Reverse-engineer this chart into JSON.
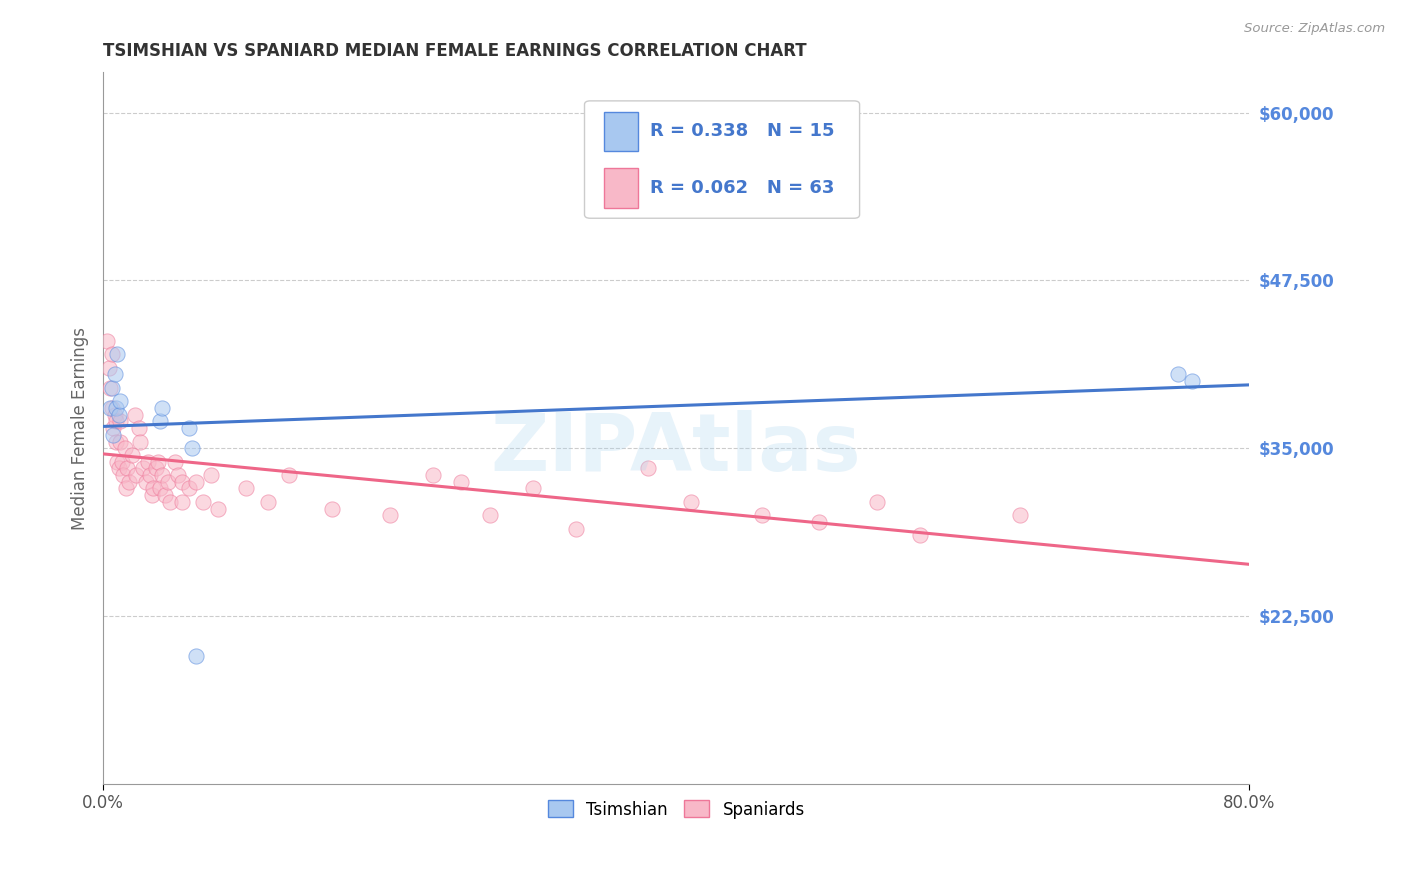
{
  "title": "TSIMSHIAN VS SPANIARD MEDIAN FEMALE EARNINGS CORRELATION CHART",
  "source": "Source: ZipAtlas.com",
  "ylabel": "Median Female Earnings",
  "xlim": [
    0.0,
    0.8
  ],
  "ylim": [
    10000,
    63000
  ],
  "yticks": [
    22500,
    35000,
    47500,
    60000
  ],
  "ytick_labels": [
    "$22,500",
    "$35,000",
    "$47,500",
    "$60,000"
  ],
  "background_color": "#ffffff",
  "grid_color": "#cccccc",
  "blue_fill": "#a8c8f0",
  "pink_fill": "#f8b8c8",
  "blue_edge": "#5588dd",
  "pink_edge": "#ee7799",
  "blue_line": "#4477cc",
  "pink_line": "#ee6688",
  "marker_size": 120,
  "marker_alpha": 0.55,
  "line_width": 2.2,
  "tsimshian_x": [
    0.005,
    0.006,
    0.007,
    0.008,
    0.009,
    0.01,
    0.011,
    0.012,
    0.04,
    0.041,
    0.06,
    0.062,
    0.065,
    0.75,
    0.76
  ],
  "tsimshian_y": [
    38000,
    39500,
    36000,
    40500,
    38000,
    42000,
    37500,
    38500,
    37000,
    38000,
    36500,
    35000,
    19500,
    40500,
    40000
  ],
  "spaniard_x": [
    0.003,
    0.004,
    0.005,
    0.006,
    0.006,
    0.007,
    0.008,
    0.009,
    0.009,
    0.01,
    0.011,
    0.012,
    0.012,
    0.013,
    0.014,
    0.015,
    0.016,
    0.017,
    0.018,
    0.02,
    0.022,
    0.023,
    0.025,
    0.026,
    0.028,
    0.03,
    0.031,
    0.033,
    0.034,
    0.035,
    0.037,
    0.038,
    0.04,
    0.041,
    0.043,
    0.045,
    0.047,
    0.05,
    0.052,
    0.055,
    0.055,
    0.06,
    0.065,
    0.07,
    0.075,
    0.08,
    0.1,
    0.115,
    0.13,
    0.16,
    0.2,
    0.23,
    0.25,
    0.27,
    0.3,
    0.33,
    0.38,
    0.41,
    0.46,
    0.5,
    0.54,
    0.57,
    0.64
  ],
  "spaniard_y": [
    43000,
    41000,
    39500,
    38000,
    42000,
    36500,
    37500,
    35500,
    37000,
    34000,
    33500,
    35500,
    37000,
    34000,
    33000,
    35000,
    32000,
    33500,
    32500,
    34500,
    37500,
    33000,
    36500,
    35500,
    33500,
    32500,
    34000,
    33000,
    31500,
    32000,
    33500,
    34000,
    32000,
    33000,
    31500,
    32500,
    31000,
    34000,
    33000,
    32500,
    31000,
    32000,
    32500,
    31000,
    33000,
    30500,
    32000,
    31000,
    33000,
    30500,
    30000,
    33000,
    32500,
    30000,
    32000,
    29000,
    33500,
    31000,
    30000,
    29500,
    31000,
    28500,
    30000
  ],
  "watermark": "ZIPAtlas",
  "watermark_color": "#aad4ee",
  "watermark_alpha": 0.28
}
